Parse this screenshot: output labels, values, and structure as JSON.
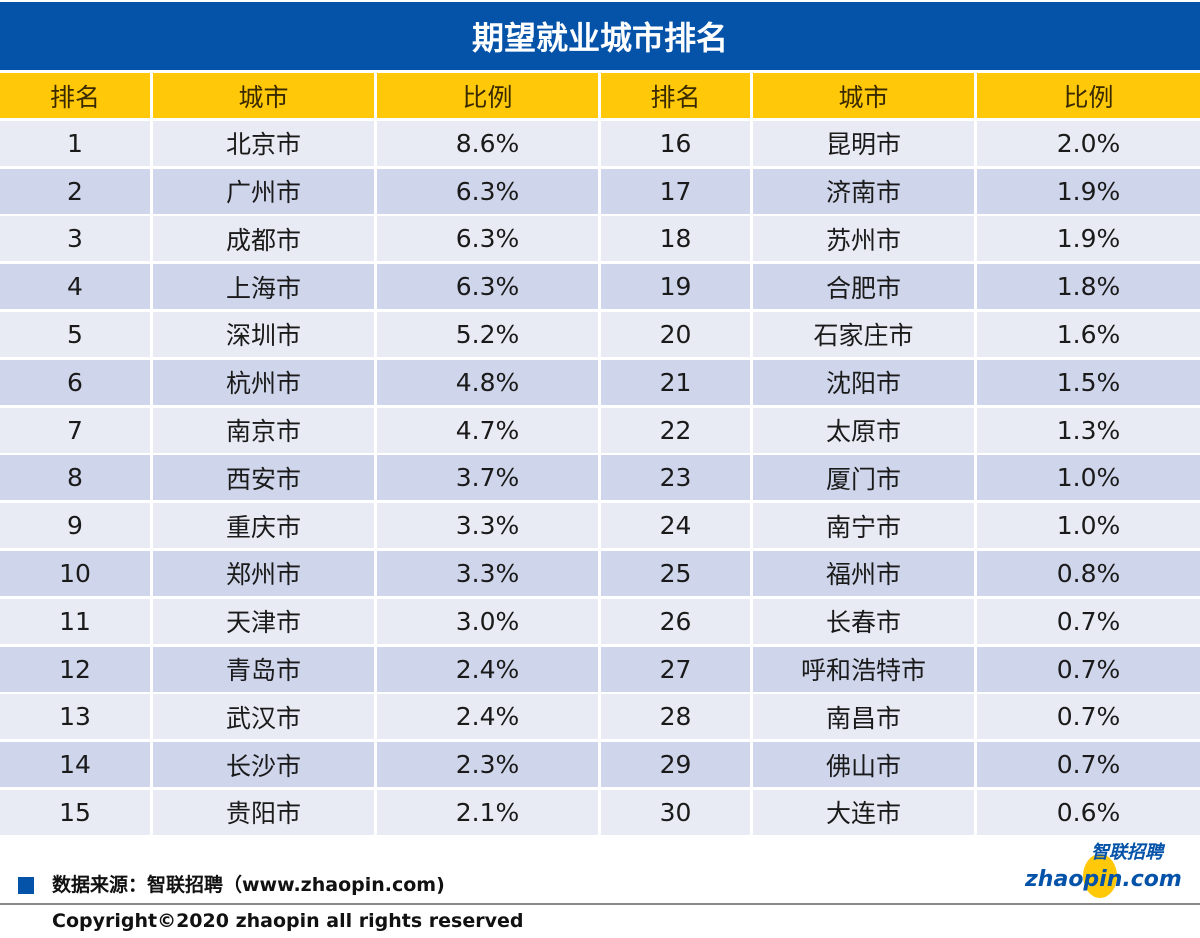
{
  "title": "期望就业城市排名",
  "headers": [
    "排名",
    "城市",
    "比例",
    "排名",
    "城市",
    "比例"
  ],
  "chart_data": {
    "type": "table",
    "title": "期望就业城市排名",
    "columns": [
      "排名",
      "城市",
      "比例"
    ],
    "rows": [
      [
        "1",
        "北京市",
        "8.6%"
      ],
      [
        "2",
        "广州市",
        "6.3%"
      ],
      [
        "3",
        "成都市",
        "6.3%"
      ],
      [
        "4",
        "上海市",
        "6.3%"
      ],
      [
        "5",
        "深圳市",
        "5.2%"
      ],
      [
        "6",
        "杭州市",
        "4.8%"
      ],
      [
        "7",
        "南京市",
        "4.7%"
      ],
      [
        "8",
        "西安市",
        "3.7%"
      ],
      [
        "9",
        "重庆市",
        "3.3%"
      ],
      [
        "10",
        "郑州市",
        "3.3%"
      ],
      [
        "11",
        "天津市",
        "3.0%"
      ],
      [
        "12",
        "青岛市",
        "2.4%"
      ],
      [
        "13",
        "武汉市",
        "2.4%"
      ],
      [
        "14",
        "长沙市",
        "2.3%"
      ],
      [
        "15",
        "贵阳市",
        "2.1%"
      ],
      [
        "16",
        "昆明市",
        "2.0%"
      ],
      [
        "17",
        "济南市",
        "1.9%"
      ],
      [
        "18",
        "苏州市",
        "1.9%"
      ],
      [
        "19",
        "合肥市",
        "1.8%"
      ],
      [
        "20",
        "石家庄市",
        "1.6%"
      ],
      [
        "21",
        "沈阳市",
        "1.5%"
      ],
      [
        "22",
        "太原市",
        "1.3%"
      ],
      [
        "23",
        "厦门市",
        "1.0%"
      ],
      [
        "24",
        "南宁市",
        "1.0%"
      ],
      [
        "25",
        "福州市",
        "0.8%"
      ],
      [
        "26",
        "长春市",
        "0.7%"
      ],
      [
        "27",
        "呼和浩特市",
        "0.7%"
      ],
      [
        "28",
        "南昌市",
        "0.7%"
      ],
      [
        "29",
        "佛山市",
        "0.7%"
      ],
      [
        "30",
        "大连市",
        "0.6%"
      ]
    ]
  },
  "footer": {
    "source": "数据来源：智联招聘（www.zhaopin.com)",
    "copyright": "Copyright©2020 zhaopin all rights reserved",
    "logo_cn": "智联招聘",
    "logo_en": "zhaopin.com"
  },
  "colors": {
    "title_bg": "#0453a9",
    "header_bg": "#ffc90a",
    "row_odd": "#e9ebf4",
    "row_even": "#cfd5ea"
  }
}
